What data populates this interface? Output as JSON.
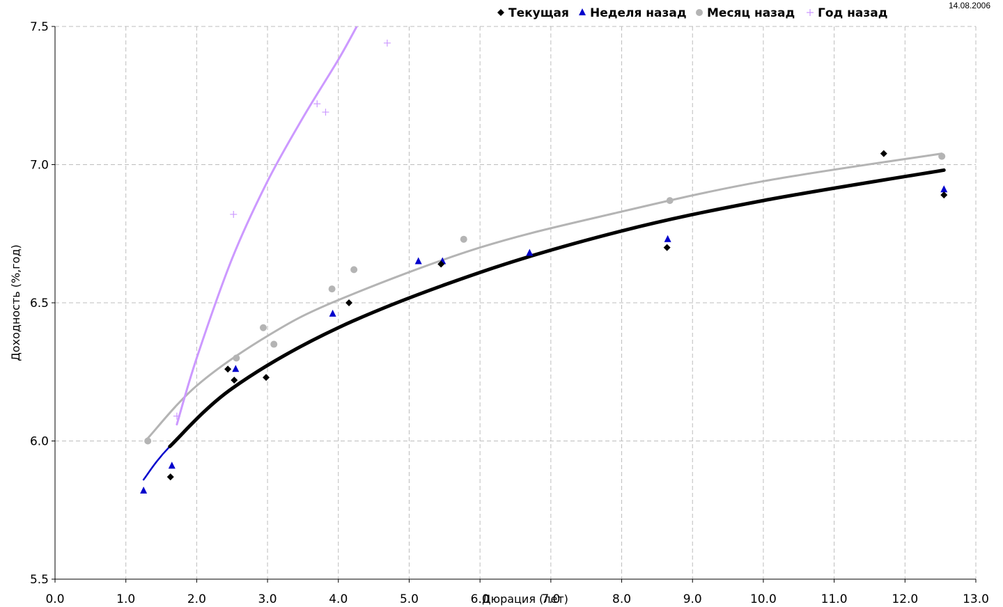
{
  "date_label": "14.08.2006",
  "chart_data": {
    "type": "scatter",
    "title": "",
    "xlabel": "Дюрация (лет)",
    "ylabel": "Доходность (%,год)",
    "xlim": [
      0,
      13
    ],
    "ylim": [
      5.5,
      7.5
    ],
    "x_ticks": [
      0,
      1,
      2,
      3,
      4,
      5,
      6,
      7,
      8,
      9,
      10,
      11,
      12,
      13
    ],
    "x_tick_labels": [
      "0.0",
      "1.0",
      "2.0",
      "3.0",
      "4.0",
      "5.0",
      "6.0",
      "7.0",
      "8.0",
      "9.0",
      "10.0",
      "11.0",
      "12.0",
      "13.0"
    ],
    "y_ticks": [
      5.5,
      6.0,
      6.5,
      7.0,
      7.5
    ],
    "y_tick_labels": [
      "5.5",
      "6.0",
      "6.5",
      "7.0",
      "7.5"
    ],
    "grid": true,
    "legend_position": "top-right",
    "series": [
      {
        "name": "Текущая",
        "marker": "diamond",
        "color": "#000000",
        "points": [
          [
            1.63,
            5.87
          ],
          [
            2.44,
            6.26
          ],
          [
            2.53,
            6.22
          ],
          [
            2.98,
            6.23
          ],
          [
            4.15,
            6.5
          ],
          [
            5.45,
            6.64
          ],
          [
            8.64,
            6.7
          ],
          [
            11.7,
            7.04
          ],
          [
            12.55,
            6.89
          ]
        ],
        "trend": {
          "from": 1.62,
          "to": 12.55,
          "samples": [
            [
              1.62,
              5.98
            ],
            [
              2.5,
              6.19
            ],
            [
              4.0,
              6.41
            ],
            [
              6.0,
              6.61
            ],
            [
              8.0,
              6.76
            ],
            [
              10.0,
              6.87
            ],
            [
              12.55,
              6.98
            ]
          ]
        }
      },
      {
        "name": "Неделя назад",
        "marker": "triangle",
        "color": "#0000cc",
        "points": [
          [
            1.25,
            5.82
          ],
          [
            1.65,
            5.91
          ],
          [
            2.55,
            6.26
          ],
          [
            3.92,
            6.46
          ],
          [
            5.13,
            6.65
          ],
          [
            5.47,
            6.65
          ],
          [
            6.7,
            6.68
          ],
          [
            8.65,
            6.73
          ],
          [
            12.55,
            6.91
          ]
        ],
        "trend": {
          "from": 1.25,
          "to": 12.55,
          "samples": [
            [
              1.25,
              5.86
            ],
            [
              1.62,
              5.98
            ],
            [
              2.5,
              6.19
            ],
            [
              4.0,
              6.41
            ],
            [
              6.0,
              6.61
            ],
            [
              8.0,
              6.76
            ],
            [
              10.0,
              6.87
            ],
            [
              12.55,
              6.98
            ]
          ]
        }
      },
      {
        "name": "Месяц назад",
        "marker": "circle",
        "color": "#b4b4b4",
        "points": [
          [
            1.31,
            6.0
          ],
          [
            2.56,
            6.3
          ],
          [
            2.94,
            6.41
          ],
          [
            3.09,
            6.35
          ],
          [
            3.91,
            6.55
          ],
          [
            4.22,
            6.62
          ],
          [
            5.77,
            6.73
          ],
          [
            8.68,
            6.87
          ],
          [
            12.52,
            7.03
          ]
        ],
        "trend": {
          "from": 1.31,
          "to": 12.52,
          "samples": [
            [
              1.31,
              6.01
            ],
            [
              2.0,
              6.2
            ],
            [
              3.0,
              6.38
            ],
            [
              4.0,
              6.51
            ],
            [
              6.0,
              6.7
            ],
            [
              8.0,
              6.83
            ],
            [
              10.0,
              6.94
            ],
            [
              12.52,
              7.04
            ]
          ]
        }
      },
      {
        "name": "Год назад",
        "marker": "plus",
        "color": "#cc99ff",
        "points": [
          [
            1.72,
            6.09
          ],
          [
            2.52,
            6.82
          ],
          [
            3.7,
            7.22
          ],
          [
            3.82,
            7.19
          ],
          [
            4.69,
            7.44
          ]
        ],
        "trend": {
          "from": 1.72,
          "to": 4.26,
          "samples": [
            [
              1.72,
              6.06
            ],
            [
              2.0,
              6.3
            ],
            [
              2.5,
              6.66
            ],
            [
              3.0,
              6.94
            ],
            [
              3.5,
              7.17
            ],
            [
              4.0,
              7.38
            ],
            [
              4.26,
              7.5
            ]
          ]
        }
      }
    ]
  }
}
